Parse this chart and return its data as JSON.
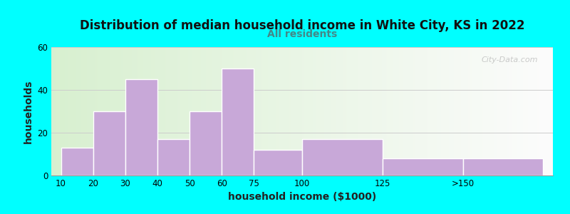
{
  "title": "Distribution of median household income in White City, KS in 2022",
  "subtitle": "All residents",
  "xlabel": "household income ($1000)",
  "ylabel": "households",
  "background_color": "#00FFFF",
  "bar_color": "#c8a8d8",
  "bar_edge_color": "#ffffff",
  "bar_heights": [
    13,
    30,
    45,
    17,
    30,
    50,
    12,
    17,
    8,
    8
  ],
  "bar_labels": [
    "10",
    "20",
    "30",
    "40",
    "50",
    "60",
    "75",
    "100",
    "125",
    ">150"
  ],
  "bar_widths": [
    1,
    1,
    1,
    1,
    1,
    1,
    1.5,
    2.5,
    2.5,
    2.5
  ],
  "bar_positions": [
    0,
    1,
    2,
    3,
    4,
    5,
    6,
    7.5,
    10,
    12.5
  ],
  "ylim": [
    0,
    60
  ],
  "yticks": [
    0,
    20,
    40,
    60
  ],
  "title_fontsize": 12,
  "subtitle_fontsize": 10,
  "axis_label_fontsize": 10,
  "watermark_text": "City-Data.com",
  "subtitle_color": "#448888",
  "title_color": "#111111"
}
